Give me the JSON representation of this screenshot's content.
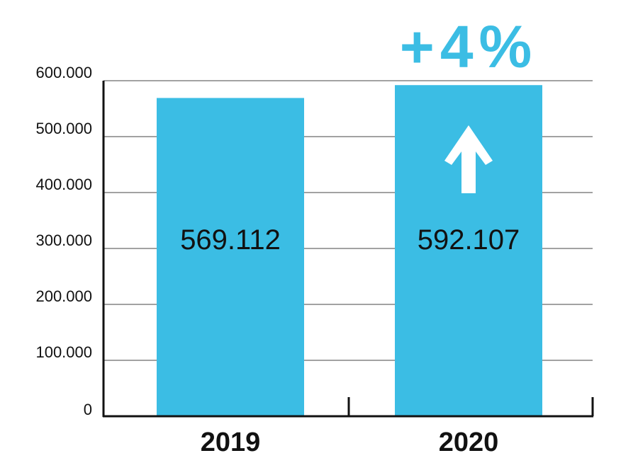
{
  "chart_data": {
    "type": "bar",
    "categories": [
      "2019",
      "2020"
    ],
    "values": [
      569112,
      592107
    ],
    "value_labels": [
      "569.112",
      "592.107"
    ],
    "y_ticks": [
      0,
      100000,
      200000,
      300000,
      400000,
      500000,
      600000
    ],
    "y_tick_labels": [
      "0",
      "100.000",
      "200.000",
      "300.000",
      "400.000",
      "500.000",
      "600.000"
    ],
    "ylim": [
      0,
      600000
    ],
    "grid": true,
    "annotation": {
      "text": "+4%",
      "icon": "arrow-up-icon",
      "category": "2020"
    },
    "colors": {
      "bar": "#3bbde4",
      "axis": "#111111",
      "grid": "#444444",
      "annotation": "#3bbde4",
      "arrow": "#ffffff"
    }
  }
}
